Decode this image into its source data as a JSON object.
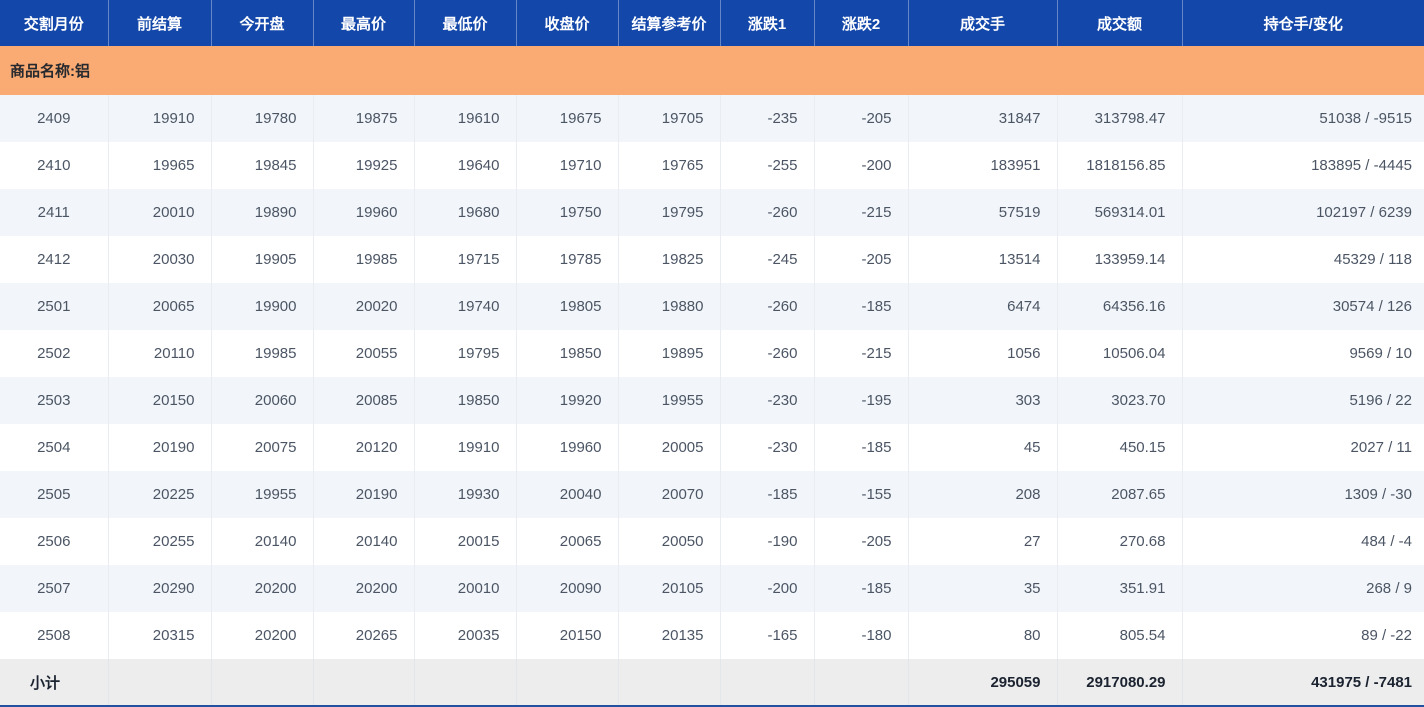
{
  "table": {
    "columns": [
      {
        "key": "delivery-month",
        "label": "交割月份"
      },
      {
        "key": "prev-settlement",
        "label": "前结算"
      },
      {
        "key": "open",
        "label": "今开盘"
      },
      {
        "key": "high",
        "label": "最高价"
      },
      {
        "key": "low",
        "label": "最低价"
      },
      {
        "key": "close",
        "label": "收盘价"
      },
      {
        "key": "settlement-ref",
        "label": "结算参考价"
      },
      {
        "key": "change1",
        "label": "涨跌1"
      },
      {
        "key": "change2",
        "label": "涨跌2"
      },
      {
        "key": "volume",
        "label": "成交手"
      },
      {
        "key": "turnover",
        "label": "成交额"
      },
      {
        "key": "open-interest-change",
        "label": "持仓手/变化"
      }
    ],
    "group_label": "商品名称:铝",
    "rows": [
      [
        "2409",
        "19910",
        "19780",
        "19875",
        "19610",
        "19675",
        "19705",
        "-235",
        "-205",
        "31847",
        "313798.47",
        "51038 / -9515"
      ],
      [
        "2410",
        "19965",
        "19845",
        "19925",
        "19640",
        "19710",
        "19765",
        "-255",
        "-200",
        "183951",
        "1818156.85",
        "183895 / -4445"
      ],
      [
        "2411",
        "20010",
        "19890",
        "19960",
        "19680",
        "19750",
        "19795",
        "-260",
        "-215",
        "57519",
        "569314.01",
        "102197 / 6239"
      ],
      [
        "2412",
        "20030",
        "19905",
        "19985",
        "19715",
        "19785",
        "19825",
        "-245",
        "-205",
        "13514",
        "133959.14",
        "45329 / 118"
      ],
      [
        "2501",
        "20065",
        "19900",
        "20020",
        "19740",
        "19805",
        "19880",
        "-260",
        "-185",
        "6474",
        "64356.16",
        "30574 / 126"
      ],
      [
        "2502",
        "20110",
        "19985",
        "20055",
        "19795",
        "19850",
        "19895",
        "-260",
        "-215",
        "1056",
        "10506.04",
        "9569 / 10"
      ],
      [
        "2503",
        "20150",
        "20060",
        "20085",
        "19850",
        "19920",
        "19955",
        "-230",
        "-195",
        "303",
        "3023.70",
        "5196 / 22"
      ],
      [
        "2504",
        "20190",
        "20075",
        "20120",
        "19910",
        "19960",
        "20005",
        "-230",
        "-185",
        "45",
        "450.15",
        "2027 / 11"
      ],
      [
        "2505",
        "20225",
        "19955",
        "20190",
        "19930",
        "20040",
        "20070",
        "-185",
        "-155",
        "208",
        "2087.65",
        "1309 / -30"
      ],
      [
        "2506",
        "20255",
        "20140",
        "20140",
        "20015",
        "20065",
        "20050",
        "-190",
        "-205",
        "27",
        "270.68",
        "484 / -4"
      ],
      [
        "2507",
        "20290",
        "20200",
        "20200",
        "20010",
        "20090",
        "20105",
        "-200",
        "-185",
        "35",
        "351.91",
        "268 / 9"
      ],
      [
        "2508",
        "20315",
        "20200",
        "20265",
        "20035",
        "20150",
        "20135",
        "-165",
        "-180",
        "80",
        "805.54",
        "89 / -22"
      ]
    ],
    "footer": {
      "label": "小计",
      "volume": "295059",
      "turnover": "2917080.29",
      "open_interest_change": "431975 / -7481"
    }
  },
  "colors": {
    "header_bg": "#1347a9",
    "band_bg": "#faab73",
    "row_alt_bg": "#f2f6fa",
    "footer_bg": "#ededed",
    "bottom_strip": "#2351a2"
  }
}
